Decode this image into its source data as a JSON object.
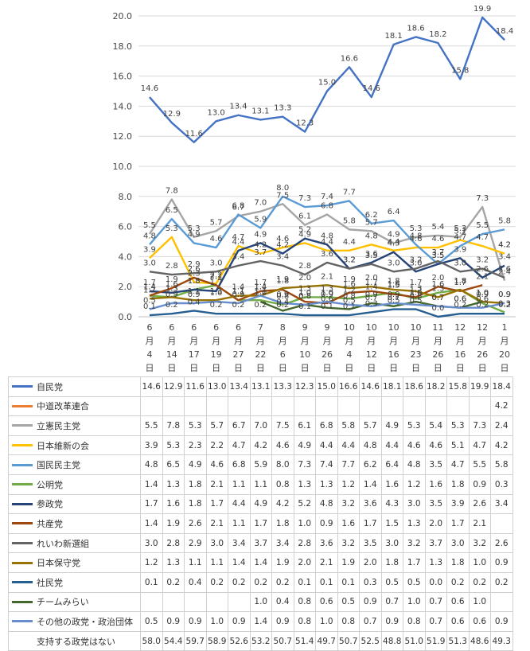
{
  "chart_data": {
    "type": "line",
    "title": "",
    "ylim": [
      0,
      20
    ],
    "yticks": [
      "0.0",
      "2.0",
      "4.0",
      "6.0",
      "8.0",
      "10.0",
      "12.0",
      "14.0",
      "16.0",
      "18.0",
      "20.0"
    ],
    "categories": [
      {
        "m": "6",
        "mk": "月",
        "d": "4",
        "dk": "日"
      },
      {
        "m": "6",
        "mk": "月",
        "d": "14",
        "dk": "日"
      },
      {
        "m": "6",
        "mk": "月",
        "d": "17",
        "dk": "日"
      },
      {
        "m": "6",
        "mk": "月",
        "d": "19",
        "dk": "日"
      },
      {
        "m": "6",
        "mk": "月",
        "d": "27",
        "dk": "日"
      },
      {
        "m": "7",
        "mk": "月",
        "d": "22",
        "dk": "日"
      },
      {
        "m": "8",
        "mk": "月",
        "d": "6",
        "dk": "日"
      },
      {
        "m": "9",
        "mk": "月",
        "d": "10",
        "dk": "日"
      },
      {
        "m": "9",
        "mk": "月",
        "d": "26",
        "dk": "日"
      },
      {
        "m": "10",
        "mk": "月",
        "d": "4",
        "dk": "日"
      },
      {
        "m": "10",
        "mk": "月",
        "d": "12",
        "dk": "日"
      },
      {
        "m": "10",
        "mk": "月",
        "d": "16",
        "dk": "日"
      },
      {
        "m": "10",
        "mk": "月",
        "d": "23",
        "dk": "日"
      },
      {
        "m": "11",
        "mk": "月",
        "d": "26",
        "dk": "日"
      },
      {
        "m": "12",
        "mk": "月",
        "d": "16",
        "dk": "日"
      },
      {
        "m": "12",
        "mk": "月",
        "d": "26",
        "dk": "日"
      },
      {
        "m": "1",
        "mk": "月",
        "d": "20",
        "dk": "日"
      }
    ],
    "series": [
      {
        "name": "自民党",
        "color": "#4472C4",
        "values": [
          14.6,
          12.9,
          11.6,
          13.0,
          13.4,
          13.1,
          13.3,
          12.3,
          15.0,
          16.6,
          14.6,
          18.1,
          18.6,
          18.2,
          15.8,
          19.9,
          18.4
        ]
      },
      {
        "name": "中道改革連合",
        "color": "#ED7D31",
        "values": [
          null,
          null,
          null,
          null,
          null,
          null,
          null,
          null,
          null,
          null,
          null,
          null,
          null,
          null,
          null,
          null,
          4.2
        ]
      },
      {
        "name": "立憲民主党",
        "color": "#A5A5A5",
        "values": [
          5.5,
          7.8,
          5.3,
          5.7,
          6.7,
          7.0,
          7.5,
          6.1,
          6.8,
          5.8,
          5.7,
          4.9,
          5.3,
          5.4,
          5.3,
          7.3,
          2.4
        ]
      },
      {
        "name": "日本維新の会",
        "color": "#FFC000",
        "values": [
          3.9,
          5.3,
          2.3,
          2.2,
          4.7,
          4.2,
          4.6,
          4.9,
          4.4,
          4.4,
          4.8,
          4.4,
          4.6,
          4.6,
          5.1,
          4.7,
          4.2
        ]
      },
      {
        "name": "国民民主党",
        "color": "#5B9BD5",
        "values": [
          4.8,
          6.5,
          4.9,
          4.6,
          6.8,
          5.9,
          8.0,
          7.3,
          7.4,
          7.7,
          6.2,
          6.4,
          4.8,
          3.5,
          4.7,
          5.5,
          5.8
        ]
      },
      {
        "name": "公明党",
        "color": "#70AD47",
        "values": [
          1.4,
          1.3,
          1.8,
          2.1,
          1.1,
          1.1,
          0.8,
          1.3,
          1.3,
          1.2,
          1.4,
          1.6,
          1.2,
          1.6,
          1.8,
          0.9,
          0.3
        ]
      },
      {
        "name": "参政党",
        "color": "#264478",
        "values": [
          1.7,
          1.6,
          1.8,
          1.7,
          4.4,
          4.9,
          4.2,
          5.2,
          4.8,
          3.2,
          3.6,
          4.3,
          3.0,
          3.5,
          3.9,
          2.6,
          3.4
        ]
      },
      {
        "name": "共産党",
        "color": "#9E480E",
        "values": [
          1.4,
          1.9,
          2.6,
          2.1,
          1.1,
          1.7,
          1.8,
          1.0,
          0.9,
          1.6,
          1.7,
          1.5,
          1.3,
          2.0,
          1.7,
          2.1,
          null
        ]
      },
      {
        "name": "れいわ新選組",
        "color": "#636363",
        "values": [
          3.0,
          2.8,
          2.9,
          3.0,
          3.4,
          3.7,
          3.4,
          2.8,
          3.6,
          3.2,
          3.5,
          3.0,
          3.2,
          3.7,
          3.0,
          3.2,
          2.6
        ]
      },
      {
        "name": "日本保守党",
        "color": "#997300",
        "values": [
          1.2,
          1.3,
          1.1,
          1.1,
          1.4,
          1.4,
          1.9,
          2.0,
          2.1,
          1.9,
          2.0,
          1.8,
          1.7,
          1.3,
          1.8,
          1.0,
          0.9
        ]
      },
      {
        "name": "社民党",
        "color": "#255E91",
        "values": [
          0.1,
          0.2,
          0.4,
          0.2,
          0.2,
          0.2,
          0.2,
          0.1,
          0.1,
          0.1,
          0.3,
          0.5,
          0.5,
          0.0,
          0.2,
          0.2,
          0.2
        ]
      },
      {
        "name": "チームみらい",
        "color": "#43682B",
        "values": [
          null,
          null,
          null,
          null,
          null,
          1.0,
          0.4,
          0.8,
          0.6,
          0.5,
          0.9,
          0.7,
          1.0,
          0.7,
          0.6,
          1.0,
          null
        ]
      },
      {
        "name": "その他の政党・政治団体",
        "color": "#698ED0",
        "values": [
          0.5,
          0.9,
          0.9,
          1.0,
          0.9,
          1.4,
          0.9,
          0.8,
          1.0,
          0.8,
          0.7,
          0.9,
          0.8,
          0.7,
          0.6,
          0.6,
          0.9
        ]
      },
      {
        "name": "支持する政党はない",
        "color": "",
        "values": [
          58.0,
          54.4,
          59.7,
          58.9,
          52.6,
          53.2,
          50.7,
          51.4,
          49.7,
          50.7,
          52.5,
          48.8,
          51.0,
          51.9,
          51.3,
          48.6,
          49.3
        ]
      }
    ],
    "table": {
      "rows": [
        {
          "name": "自民党",
          "values": [
            "14.6",
            "12.9",
            "11.6",
            "13.0",
            "13.4",
            "13.1",
            "13.3",
            "12.3",
            "15.0",
            "16.6",
            "14.6",
            "18.1",
            "18.6",
            "18.2",
            "15.8",
            "19.9",
            "18.4"
          ]
        },
        {
          "name": "中道改革連合",
          "values": [
            "",
            "",
            "",
            "",
            "",
            "",
            "",
            "",
            "",
            "",
            "",
            "",
            "",
            "",
            "",
            "",
            "4.2"
          ]
        },
        {
          "name": "立憲民主党",
          "values": [
            "5.5",
            "7.8",
            "5.3",
            "5.7",
            "6.7",
            "7.0",
            "7.5",
            "6.1",
            "6.8",
            "5.8",
            "5.7",
            "4.9",
            "5.3",
            "5.4",
            "5.3",
            "7.3",
            "2.4"
          ]
        },
        {
          "name": "日本維新の会",
          "values": [
            "3.9",
            "5.3",
            "2.3",
            "2.2",
            "4.7",
            "4.2",
            "4.6",
            "4.9",
            "4.4",
            "4.4",
            "4.8",
            "4.4",
            "4.6",
            "4.6",
            "5.1",
            "4.7",
            "4.2"
          ]
        },
        {
          "name": "国民民主党",
          "values": [
            "4.8",
            "6.5",
            "4.9",
            "4.6",
            "6.8",
            "5.9",
            "8.0",
            "7.3",
            "7.4",
            "7.7",
            "6.2",
            "6.4",
            "4.8",
            "3.5",
            "4.7",
            "5.5",
            "5.8"
          ]
        },
        {
          "name": "公明党",
          "values": [
            "1.4",
            "1.3",
            "1.8",
            "2.1",
            "1.1",
            "1.1",
            "0.8",
            "1.3",
            "1.3",
            "1.2",
            "1.4",
            "1.6",
            "1.2",
            "1.6",
            "1.8",
            "0.9",
            "0.3"
          ]
        },
        {
          "name": "参政党",
          "values": [
            "1.7",
            "1.6",
            "1.8",
            "1.7",
            "4.4",
            "4.9",
            "4.2",
            "5.2",
            "4.8",
            "3.2",
            "3.6",
            "4.3",
            "3.0",
            "3.5",
            "3.9",
            "2.6",
            "3.4"
          ]
        },
        {
          "name": "共産党",
          "values": [
            "1.4",
            "1.9",
            "2.6",
            "2.1",
            "1.1",
            "1.7",
            "1.8",
            "1.0",
            "0.9",
            "1.6",
            "1.7",
            "1.5",
            "1.3",
            "2.0",
            "1.7",
            "2.1",
            ""
          ]
        },
        {
          "name": "れいわ新選組",
          "values": [
            "3.0",
            "2.8",
            "2.9",
            "3.0",
            "3.4",
            "3.7",
            "3.4",
            "2.8",
            "3.6",
            "3.2",
            "3.5",
            "3.0",
            "3.2",
            "3.7",
            "3.0",
            "3.2",
            "2.6"
          ]
        },
        {
          "name": "日本保守党",
          "values": [
            "1.2",
            "1.3",
            "1.1",
            "1.1",
            "1.4",
            "1.4",
            "1.9",
            "2.0",
            "2.1",
            "1.9",
            "2.0",
            "1.8",
            "1.7",
            "1.3",
            "1.8",
            "1.0",
            "0.9"
          ]
        },
        {
          "name": "社民党",
          "values": [
            "0.1",
            "0.2",
            "0.4",
            "0.2",
            "0.2",
            "0.2",
            "0.2",
            "0.1",
            "0.1",
            "0.1",
            "0.3",
            "0.5",
            "0.5",
            "0.0",
            "0.2",
            "0.2",
            "0.2"
          ]
        },
        {
          "name": "チームみらい",
          "values": [
            "",
            "",
            "",
            "",
            "",
            "1.0",
            "0.4",
            "0.8",
            "0.6",
            "0.5",
            "0.9",
            "0.7",
            "1.0",
            "0.7",
            "0.6",
            "1.0",
            ""
          ]
        },
        {
          "name": "その他の政党・政治団体",
          "values": [
            "0.5",
            "0.9",
            "0.9",
            "1.0",
            "0.9",
            "1.4",
            "0.9",
            "0.8",
            "1.0",
            "0.8",
            "0.7",
            "0.9",
            "0.8",
            "0.7",
            "0.6",
            "0.6",
            "0.9"
          ]
        },
        {
          "name": "支持する政党はない",
          "values": [
            "58.0",
            "54.4",
            "59.7",
            "58.9",
            "52.6",
            "53.2",
            "50.7",
            "51.4",
            "49.7",
            "50.7",
            "52.5",
            "48.8",
            "51.0",
            "51.9",
            "51.3",
            "48.6",
            "49.3"
          ]
        }
      ]
    }
  }
}
